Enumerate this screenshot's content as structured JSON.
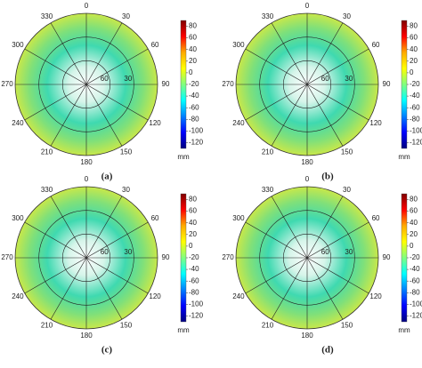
{
  "chart_data": [
    {
      "type": "polar-heatmap",
      "caption": "(a)",
      "theta_ticks": [
        0,
        30,
        60,
        90,
        120,
        150,
        180,
        210,
        240,
        270,
        300,
        330
      ],
      "rlim": [
        90,
        0
      ],
      "rticks": [
        60,
        30
      ],
      "colorbar": {
        "label": "mm",
        "lim": [
          -130,
          90
        ],
        "ticks": [
          80,
          60,
          40,
          20,
          0,
          -20,
          -40,
          -60,
          -80,
          -100,
          -120
        ],
        "colors": [
          "#7f0000",
          "#ff0000",
          "#ffaa00",
          "#ffff00",
          "#80ff80",
          "#00ffff",
          "#0080ff",
          "#0000ff",
          "#00007f"
        ]
      }
    },
    {
      "type": "polar-heatmap",
      "caption": "(b)",
      "theta_ticks": [
        0,
        30,
        60,
        90,
        120,
        150,
        180,
        210,
        240,
        270,
        300,
        330
      ],
      "rlim": [
        90,
        0
      ],
      "rticks": [
        60,
        30
      ],
      "colorbar": {
        "label": "mm",
        "lim": [
          -130,
          90
        ],
        "ticks": [
          80,
          60,
          40,
          20,
          0,
          -20,
          -40,
          -60,
          -80,
          -100,
          -120
        ],
        "colors": [
          "#7f0000",
          "#ff0000",
          "#ffaa00",
          "#ffff00",
          "#80ff80",
          "#00ffff",
          "#0080ff",
          "#0000ff",
          "#00007f"
        ]
      }
    },
    {
      "type": "polar-heatmap",
      "caption": "(c)",
      "theta_ticks": [
        0,
        30,
        60,
        90,
        120,
        150,
        180,
        210,
        240,
        270,
        300,
        330
      ],
      "rlim": [
        90,
        0
      ],
      "rticks": [
        60,
        30
      ],
      "colorbar": {
        "label": "mm",
        "lim": [
          -130,
          90
        ],
        "ticks": [
          80,
          60,
          40,
          20,
          0,
          -20,
          -40,
          -60,
          -80,
          -100,
          -120
        ],
        "colors": [
          "#7f0000",
          "#ff0000",
          "#ffaa00",
          "#ffff00",
          "#80ff80",
          "#00ffff",
          "#0080ff",
          "#0000ff",
          "#00007f"
        ]
      }
    },
    {
      "type": "polar-heatmap",
      "caption": "(d)",
      "theta_ticks": [
        0,
        30,
        60,
        90,
        120,
        150,
        180,
        210,
        240,
        270,
        300,
        330
      ],
      "rlim": [
        90,
        0
      ],
      "rticks": [
        60,
        30
      ],
      "colorbar": {
        "label": "mm",
        "lim": [
          -130,
          90
        ],
        "ticks": [
          80,
          60,
          40,
          20,
          0,
          -20,
          -40,
          -60,
          -80,
          -100,
          -120
        ],
        "colors": [
          "#7f0000",
          "#ff0000",
          "#ffaa00",
          "#ffff00",
          "#80ff80",
          "#00ffff",
          "#0080ff",
          "#0000ff",
          "#00007f"
        ]
      }
    }
  ]
}
